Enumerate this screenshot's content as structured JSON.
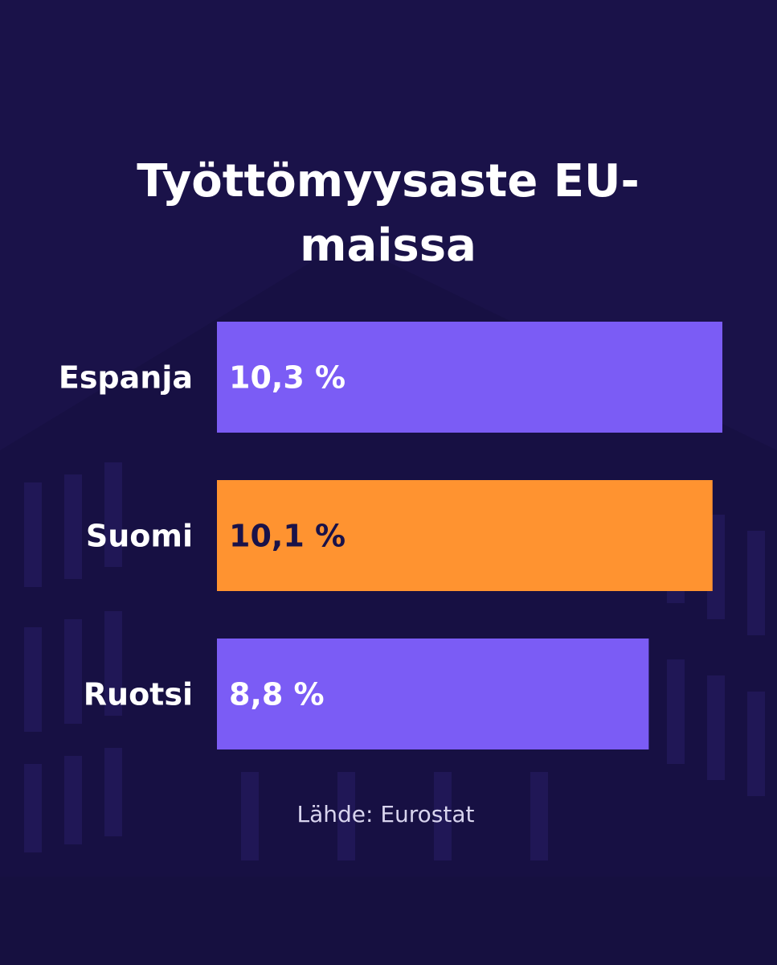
{
  "chart_data": {
    "type": "bar",
    "orientation": "horizontal",
    "title": "Työttömyysaste EU-maissa",
    "categories": [
      "Espanja",
      "Suomi",
      "Ruotsi"
    ],
    "values": [
      10.3,
      10.1,
      8.8
    ],
    "value_labels": [
      "10,3 %",
      "10,1 %",
      "8,8 %"
    ],
    "colors": [
      "#7b5cf5",
      "#ff9330",
      "#7b5cf5"
    ],
    "source": "Lähde: Eurostat"
  }
}
